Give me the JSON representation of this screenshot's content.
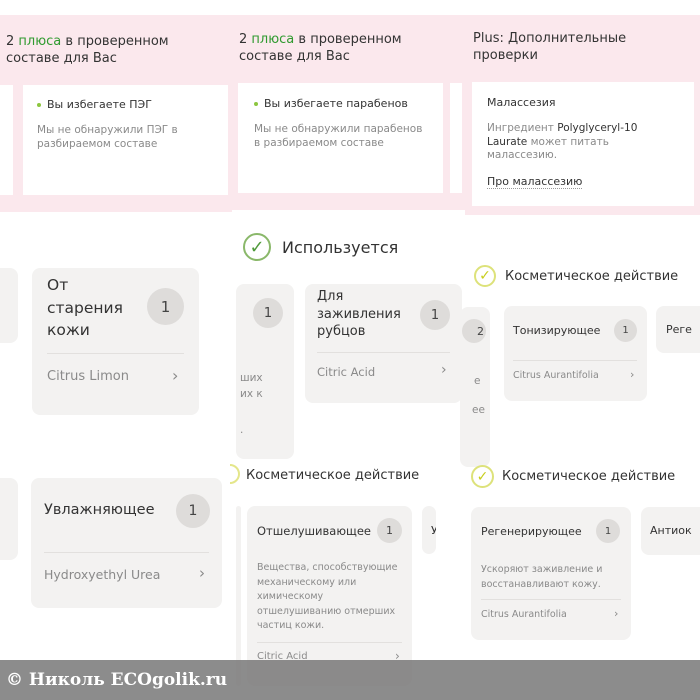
{
  "colors": {
    "pink": "#fbe8ed",
    "green": "#2f9a2f",
    "check_green": "#6aa84f",
    "check_yellow": "#d4d92a"
  },
  "col1": {
    "header": {
      "pre": "2 ",
      "accent": "плюса",
      "post": " в проверенном составе для Вас"
    },
    "card": {
      "title": "Вы избегаете ПЭГ",
      "text": "Мы не обнаружили ПЭГ в разбираемом составе"
    },
    "card_aging": {
      "title": "От старения кожи",
      "count": "1",
      "ingredient": "Citrus Limon"
    },
    "card_moist": {
      "title": "Увлажняющее",
      "count": "1",
      "ingredient": "Hydroxyethyl Urea"
    }
  },
  "col2": {
    "header": {
      "pre": "2 ",
      "accent": "плюса",
      "post": " в проверенном составе для Вас"
    },
    "card": {
      "title": "Вы избегаете парабенов",
      "text": "Мы не обнаружили парабенов в разбираемом составе"
    },
    "section_used": "Используется",
    "partial_card": {
      "count": "1",
      "l1": "ших",
      "l2": "их к",
      "l3": "."
    },
    "card_scars": {
      "title": "Для заживления рубцов",
      "count": "1",
      "ingredient": "Citric Acid"
    },
    "section_cosmetic": "Косметическое действие",
    "card_exfol": {
      "title": "Отшелушивающее",
      "count": "1",
      "text": "Вещества, способствующие механическому или химическому отшелушиванию отмерших частиц кожи.",
      "ingredient": "Citric Acid"
    },
    "partial_next": "У"
  },
  "col3": {
    "header": "Plus: Дополнительные проверки",
    "card": {
      "title": "Малассезия",
      "pre": "Ингредиент ",
      "ingredient": "Polyglyceryl-10 Laurate",
      "post": " может питать малассезию.",
      "link": "Про малассезию"
    },
    "section_cosmetic_1": "Косметическое действие",
    "partial_left": {
      "count": "2",
      "l1": "е",
      "l2": "ее"
    },
    "card_tonic": {
      "title": "Тонизирующее",
      "count": "1",
      "ingredient": "Citrus Aurantifolia"
    },
    "partial_right_1": "Реге",
    "section_cosmetic_2": "Косметическое действие",
    "card_regen": {
      "title": "Регенерирующее",
      "count": "1",
      "text": "Ускоряют заживление и восстанавливают кожу.",
      "ingredient": "Citrus Aurantifolia"
    },
    "partial_right_2": "Антиок"
  },
  "watermark": "© Николь  ECOgolik.ru",
  "chevron": "›",
  "check": "✓"
}
